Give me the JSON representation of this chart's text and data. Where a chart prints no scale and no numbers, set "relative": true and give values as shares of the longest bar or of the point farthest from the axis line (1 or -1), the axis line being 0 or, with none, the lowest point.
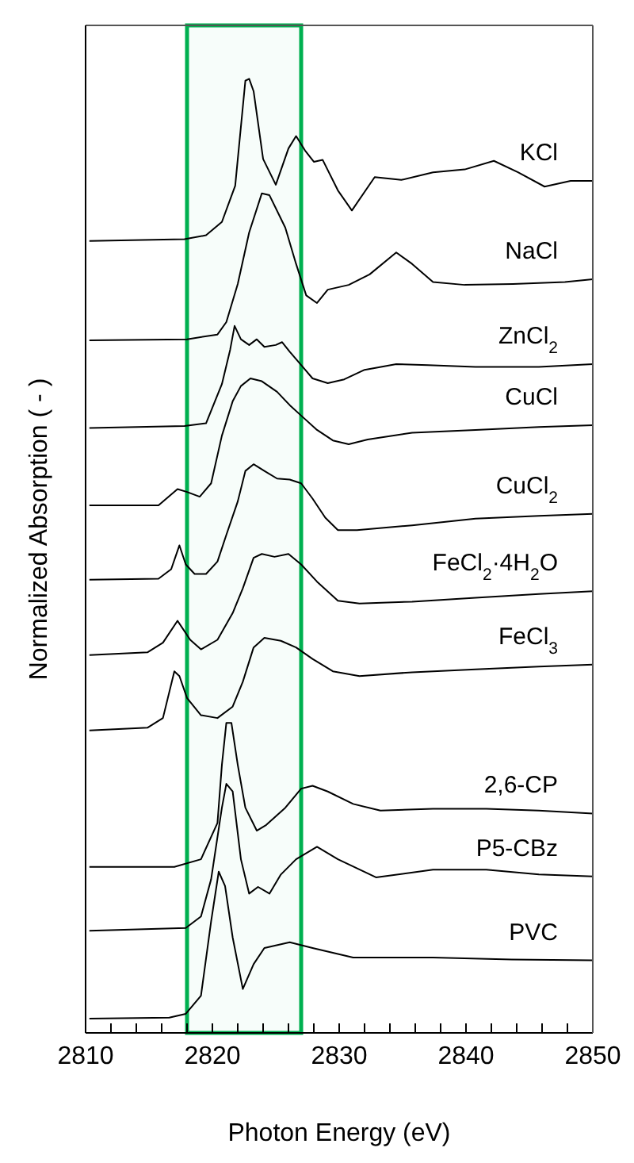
{
  "chart_data": {
    "type": "line",
    "relative": true,
    "xlabel": "Photon Energy (eV)",
    "ylabel": "Normalized Absorption ( - )",
    "xlim": [
      2810,
      2850
    ],
    "xticks": [
      2810,
      {
        "value": 2812,
        "label": null
      },
      {
        "value": 2814,
        "label": null
      },
      {
        "value": 2816,
        "label": null
      },
      {
        "value": 2818,
        "label": null
      },
      2820,
      {
        "value": 2822,
        "label": null
      },
      {
        "value": 2824,
        "label": null
      },
      {
        "value": 2826,
        "label": null
      },
      {
        "value": 2828,
        "label": null
      },
      2830,
      {
        "value": 2832,
        "label": null
      },
      {
        "value": 2834,
        "label": null
      },
      {
        "value": 2836,
        "label": null
      },
      {
        "value": 2838,
        "label": null
      },
      2840,
      {
        "value": 2842,
        "label": null
      },
      {
        "value": 2844,
        "label": null
      },
      {
        "value": 2846,
        "label": null
      },
      {
        "value": 2848,
        "label": null
      },
      2850
    ],
    "grid": false,
    "legend": false,
    "marker": "none",
    "line_style": "solid",
    "bands": [
      {
        "axis": "x",
        "from": 2818,
        "to": 2827,
        "color": "#00b050"
      }
    ],
    "series": [
      {
        "name": "KCl",
        "color": "#000000",
        "x": [
          2810.3,
          2817.8,
          2819.5,
          2820.75,
          2821.8,
          2822.6,
          2822.9,
          2823.25,
          2824,
          2825,
          2826,
          2826.6,
          2827.3,
          2828,
          2828.7,
          2829.9,
          2831,
          2832.8,
          2834.9,
          2837.4,
          2839.9,
          2842.2,
          2844.1,
          2846.2,
          2848.25,
          2850
        ],
        "values": [
          0.83,
          0.832,
          0.836,
          0.85,
          0.888,
          0.998,
          1.0,
          0.987,
          0.916,
          0.889,
          0.927,
          0.94,
          0.925,
          0.913,
          0.915,
          0.883,
          0.862,
          0.897,
          0.894,
          0.902,
          0.905,
          0.914,
          0.902,
          0.887,
          0.893,
          0.893
        ]
      },
      {
        "name": "NaCl",
        "color": "#000000",
        "x": [
          2810.3,
          2818,
          2820.4,
          2821.1,
          2822,
          2822.9,
          2823.9,
          2824.5,
          2825.75,
          2826.6,
          2827.4,
          2828.25,
          2829.1,
          2830.75,
          2832.4,
          2834.5,
          2835.75,
          2837.4,
          2839.9,
          2843.7,
          2847.8,
          2850
        ],
        "values": [
          0.726,
          0.727,
          0.732,
          0.745,
          0.785,
          0.839,
          0.88,
          0.878,
          0.844,
          0.806,
          0.773,
          0.765,
          0.779,
          0.784,
          0.795,
          0.818,
          0.806,
          0.787,
          0.784,
          0.785,
          0.787,
          0.79
        ]
      },
      {
        "name": "ZnCl$_{2}$",
        "color": "#000000",
        "x": [
          2810.3,
          2817.8,
          2819.5,
          2820.75,
          2821.4,
          2821.75,
          2822.25,
          2822.9,
          2823.5,
          2824.1,
          2825,
          2825.5,
          2826.1,
          2827,
          2827.9,
          2829.1,
          2830.4,
          2832,
          2834.5,
          2837,
          2840.75,
          2845.75,
          2850
        ],
        "values": [
          0.634,
          0.636,
          0.639,
          0.68,
          0.716,
          0.741,
          0.727,
          0.721,
          0.727,
          0.719,
          0.721,
          0.724,
          0.714,
          0.7,
          0.686,
          0.681,
          0.685,
          0.695,
          0.701,
          0.7,
          0.698,
          0.698,
          0.701
        ]
      },
      {
        "name": "CuCl",
        "color": "#000000",
        "x": [
          2810.3,
          2815.75,
          2817.25,
          2818,
          2819,
          2819.9,
          2820.75,
          2821.6,
          2822.25,
          2823,
          2823.9,
          2825.1,
          2826.1,
          2827,
          2828.25,
          2829.5,
          2830.75,
          2832.25,
          2835.75,
          2840.75,
          2845.75,
          2850
        ],
        "values": [
          0.553,
          0.553,
          0.57,
          0.567,
          0.562,
          0.576,
          0.626,
          0.662,
          0.678,
          0.686,
          0.683,
          0.672,
          0.658,
          0.647,
          0.632,
          0.621,
          0.617,
          0.622,
          0.629,
          0.632,
          0.635,
          0.637
        ]
      },
      {
        "name": "CuCl$_{2}$",
        "color": "#000000",
        "x": [
          2810.3,
          2815.75,
          2816.75,
          2817.4,
          2817.9,
          2818.6,
          2819.5,
          2820.4,
          2821.1,
          2822,
          2822.6,
          2823.25,
          2824.1,
          2825.1,
          2826.1,
          2827,
          2827.9,
          2828.9,
          2829.9,
          2831.4,
          2835.75,
          2840.75,
          2845.75,
          2850
        ],
        "values": [
          0.475,
          0.476,
          0.486,
          0.511,
          0.491,
          0.481,
          0.481,
          0.494,
          0.522,
          0.557,
          0.589,
          0.596,
          0.589,
          0.581,
          0.58,
          0.576,
          0.56,
          0.54,
          0.527,
          0.527,
          0.532,
          0.539,
          0.542,
          0.544
        ]
      },
      {
        "name": "FeCl$_{2}$·4H$_{2}$O",
        "color": "#000000",
        "x": [
          2810.3,
          2814.9,
          2816.1,
          2817.25,
          2817.6,
          2818.25,
          2819.1,
          2820.4,
          2821.6,
          2822.4,
          2823.25,
          2823.9,
          2824.9,
          2826,
          2827,
          2828.25,
          2829.9,
          2831.6,
          2835.75,
          2840.75,
          2845.75,
          2850
        ],
        "values": [
          0.396,
          0.399,
          0.409,
          0.432,
          0.425,
          0.412,
          0.402,
          0.412,
          0.44,
          0.466,
          0.498,
          0.502,
          0.499,
          0.502,
          0.491,
          0.473,
          0.453,
          0.45,
          0.452,
          0.456,
          0.46,
          0.463
        ]
      },
      {
        "name": "FeCl$_{3}$",
        "color": "#000000",
        "x": [
          2810.3,
          2814.9,
          2816.1,
          2817,
          2817.4,
          2818,
          2819.1,
          2820.4,
          2821.6,
          2822.4,
          2823.25,
          2824.1,
          2825.4,
          2826.6,
          2827.9,
          2829.5,
          2831.6,
          2835.75,
          2840.75,
          2845.75,
          2850
        ],
        "values": [
          0.317,
          0.32,
          0.33,
          0.379,
          0.374,
          0.351,
          0.333,
          0.33,
          0.342,
          0.368,
          0.404,
          0.414,
          0.411,
          0.404,
          0.392,
          0.379,
          0.374,
          0.378,
          0.381,
          0.384,
          0.386
        ]
      },
      {
        "name": "2,6-CP",
        "color": "#000000",
        "x": [
          2810.3,
          2817,
          2819.1,
          2820.4,
          2820.75,
          2821.1,
          2821.5,
          2822,
          2822.6,
          2823.5,
          2824.25,
          2825.75,
          2827,
          2827.9,
          2829.1,
          2831.1,
          2833.25,
          2837.4,
          2841.6,
          2845.75,
          2850
        ],
        "values": [
          0.174,
          0.174,
          0.182,
          0.22,
          0.281,
          0.325,
          0.325,
          0.281,
          0.236,
          0.212,
          0.218,
          0.236,
          0.256,
          0.259,
          0.253,
          0.24,
          0.233,
          0.235,
          0.235,
          0.233,
          0.23
        ]
      },
      {
        "name": "P5-CBz",
        "color": "#000000",
        "x": [
          2810.3,
          2817.9,
          2819.1,
          2819.9,
          2820.75,
          2821.1,
          2821.6,
          2822.25,
          2822.9,
          2823.6,
          2824.5,
          2825.4,
          2826.6,
          2828.25,
          2829.9,
          2832.9,
          2837.4,
          2841.6,
          2845.75,
          2850
        ],
        "values": [
          0.107,
          0.11,
          0.122,
          0.161,
          0.236,
          0.261,
          0.253,
          0.182,
          0.146,
          0.153,
          0.146,
          0.166,
          0.182,
          0.195,
          0.182,
          0.163,
          0.171,
          0.171,
          0.166,
          0.164
        ]
      },
      {
        "name": "PVC",
        "color": "#000000",
        "x": [
          2810.3,
          2816.6,
          2817.9,
          2819.1,
          2819.9,
          2820.5,
          2821,
          2821.6,
          2822.4,
          2823.25,
          2824.1,
          2826.1,
          2827.9,
          2831.1,
          2837.4,
          2843.6,
          2850
        ],
        "values": [
          0.015,
          0.016,
          0.02,
          0.039,
          0.117,
          0.169,
          0.154,
          0.1,
          0.046,
          0.072,
          0.089,
          0.095,
          0.089,
          0.079,
          0.079,
          0.077,
          0.076
        ]
      }
    ]
  }
}
